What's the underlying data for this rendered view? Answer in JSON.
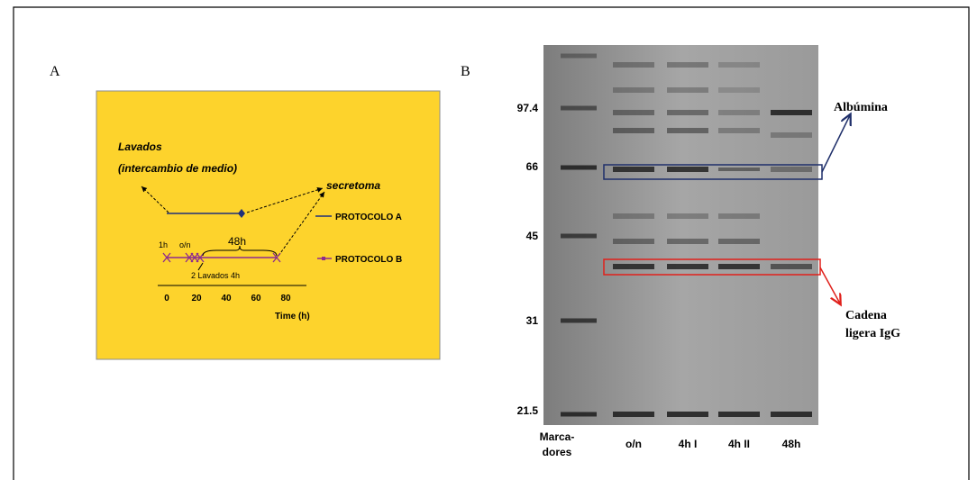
{
  "panel_a": {
    "label": "A",
    "washes": "Lavados",
    "medium_exchange": "(intercambio de medio)",
    "secretome": "secretoma",
    "legend": [
      "PROTOCOLO A",
      "PROTOCOLO B"
    ],
    "timeline_labels": [
      "1h",
      "o/n",
      "48h",
      "2 Lavados 4h"
    ],
    "x_ticks": [
      "0",
      "20",
      "40",
      "60",
      "80"
    ],
    "x_axis_title": "Time (h)"
  },
  "panel_b": {
    "label": "B",
    "mw_markers": [
      "97.4",
      "66",
      "45",
      "31",
      "21.5"
    ],
    "marker_lane": [
      "Marca-",
      "dores"
    ],
    "lanes": [
      "o/n",
      "4h I",
      "4h II",
      "48h"
    ],
    "albumin": "Albúmina",
    "igg_light_chain": [
      "Cadena",
      "ligera IgG"
    ]
  }
}
